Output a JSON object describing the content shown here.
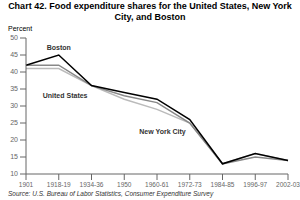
{
  "chart_data": {
    "type": "line",
    "title": "Chart 42. Food expenditure shares for the United States, New York City, and Boston",
    "y_label": "Percent",
    "annotations": [
      "Source: U.S. Bureau of Labor Statistics, Consumer Expenditure Survey"
    ],
    "categories": [
      "1901",
      "1918-19",
      "1934-36",
      "1950",
      "1960-61",
      "1972-73",
      "1984-85",
      "1996-97",
      "2002-03"
    ],
    "series": [
      {
        "name": "New York City",
        "color": "#bbbbbb",
        "values": [
          41,
          41,
          36,
          32,
          29,
          25,
          13,
          16,
          14
        ]
      },
      {
        "name": "United States",
        "color": "#888888",
        "values": [
          42,
          42,
          36,
          33,
          31,
          25,
          13,
          15,
          14
        ]
      },
      {
        "name": "Boston",
        "color": "#000000",
        "values": [
          42,
          45,
          36,
          34,
          32,
          26,
          13,
          16,
          14
        ]
      }
    ],
    "ylim": [
      10,
      50
    ],
    "yticks": [
      10,
      15,
      20,
      25,
      30,
      35,
      40,
      45,
      50
    ],
    "grid": false
  }
}
